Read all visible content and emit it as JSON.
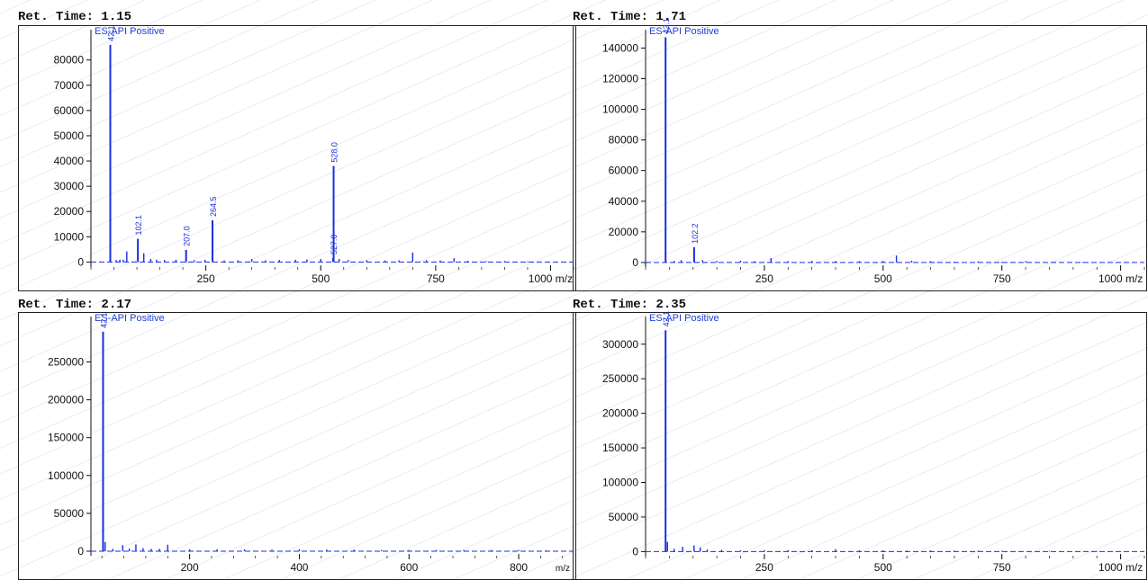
{
  "colors": {
    "spectrum": "#1a2fe0",
    "frame": "#222222",
    "axis": "#111111"
  },
  "panels": [
    {
      "ret_label": "Ret. Time: 1.15",
      "mode": "ES-API Positive"
    },
    {
      "ret_label": "Ret. Time: 1.71",
      "mode": "ES-API Positive"
    },
    {
      "ret_label": "Ret. Time: 2.17",
      "mode": "ES-API Positive"
    },
    {
      "ret_label": "Ret. Time: 2.35",
      "mode": "ES-API Positive"
    }
  ],
  "chart_data": [
    {
      "type": "bar",
      "title": "Ret. Time: 1.15",
      "subtitle": "ES-API Positive",
      "x_unit": "m/z",
      "xlim": [
        0,
        1050
      ],
      "ylim": [
        -2000,
        92000
      ],
      "x_ticks": [
        250,
        500,
        750,
        1000
      ],
      "x_tick_labels": [
        "250",
        "500",
        "750",
        "1000 m/z"
      ],
      "y_ticks": [
        0,
        10000,
        20000,
        30000,
        40000,
        50000,
        60000,
        70000,
        80000
      ],
      "peaks": [
        {
          "mz": 42.1,
          "intensity": 86000,
          "label": "42.1"
        },
        {
          "mz": 55,
          "intensity": 800
        },
        {
          "mz": 63,
          "intensity": 900
        },
        {
          "mz": 70,
          "intensity": 900
        },
        {
          "mz": 78,
          "intensity": 4200
        },
        {
          "mz": 102.1,
          "intensity": 9200,
          "label": "102.1"
        },
        {
          "mz": 115,
          "intensity": 3500
        },
        {
          "mz": 130,
          "intensity": 1200
        },
        {
          "mz": 143,
          "intensity": 900
        },
        {
          "mz": 160,
          "intensity": 800
        },
        {
          "mz": 185,
          "intensity": 900
        },
        {
          "mz": 207.0,
          "intensity": 4800,
          "label": "207.0"
        },
        {
          "mz": 225,
          "intensity": 700
        },
        {
          "mz": 248,
          "intensity": 900
        },
        {
          "mz": 264.5,
          "intensity": 16500,
          "label": "264.5"
        },
        {
          "mz": 290,
          "intensity": 600
        },
        {
          "mz": 320,
          "intensity": 700
        },
        {
          "mz": 350,
          "intensity": 1200
        },
        {
          "mz": 380,
          "intensity": 700
        },
        {
          "mz": 410,
          "intensity": 800
        },
        {
          "mz": 445,
          "intensity": 900
        },
        {
          "mz": 470,
          "intensity": 1000
        },
        {
          "mz": 500,
          "intensity": 1200
        },
        {
          "mz": 527.0,
          "intensity": 1500,
          "label": "527.0"
        },
        {
          "mz": 528.0,
          "intensity": 38000,
          "label": "528.0"
        },
        {
          "mz": 540,
          "intensity": 1200
        },
        {
          "mz": 560,
          "intensity": 800
        },
        {
          "mz": 600,
          "intensity": 700
        },
        {
          "mz": 640,
          "intensity": 600
        },
        {
          "mz": 670,
          "intensity": 700
        },
        {
          "mz": 700,
          "intensity": 3800
        },
        {
          "mz": 730,
          "intensity": 700
        },
        {
          "mz": 760,
          "intensity": 600
        },
        {
          "mz": 790,
          "intensity": 1500
        },
        {
          "mz": 820,
          "intensity": 500
        },
        {
          "mz": 860,
          "intensity": 400
        },
        {
          "mz": 900,
          "intensity": 400
        },
        {
          "mz": 950,
          "intensity": 300
        }
      ]
    },
    {
      "type": "bar",
      "title": "Ret. Time: 1.71",
      "subtitle": "ES-API Positive",
      "x_unit": "m/z",
      "xlim": [
        0,
        1050
      ],
      "ylim": [
        -3000,
        152000
      ],
      "x_ticks": [
        250,
        500,
        750,
        1000
      ],
      "x_tick_labels": [
        "250",
        "500",
        "750",
        "1000 m/z"
      ],
      "y_ticks": [
        0,
        20000,
        40000,
        60000,
        80000,
        100000,
        120000,
        140000
      ],
      "peaks": [
        {
          "mz": 42.1,
          "intensity": 147000,
          "label": "42.1"
        },
        {
          "mz": 60,
          "intensity": 1000
        },
        {
          "mz": 75,
          "intensity": 1500
        },
        {
          "mz": 102.2,
          "intensity": 10000,
          "label": "102.2"
        },
        {
          "mz": 120,
          "intensity": 1500
        },
        {
          "mz": 150,
          "intensity": 1000
        },
        {
          "mz": 200,
          "intensity": 1200
        },
        {
          "mz": 230,
          "intensity": 900
        },
        {
          "mz": 264,
          "intensity": 2800
        },
        {
          "mz": 300,
          "intensity": 900
        },
        {
          "mz": 350,
          "intensity": 1000
        },
        {
          "mz": 400,
          "intensity": 900
        },
        {
          "mz": 450,
          "intensity": 900
        },
        {
          "mz": 500,
          "intensity": 900
        },
        {
          "mz": 528,
          "intensity": 4500
        },
        {
          "mz": 560,
          "intensity": 1200
        },
        {
          "mz": 600,
          "intensity": 800
        },
        {
          "mz": 650,
          "intensity": 600
        },
        {
          "mz": 700,
          "intensity": 700
        },
        {
          "mz": 750,
          "intensity": 500
        },
        {
          "mz": 800,
          "intensity": 900
        },
        {
          "mz": 860,
          "intensity": 400
        },
        {
          "mz": 920,
          "intensity": 400
        }
      ]
    },
    {
      "type": "bar",
      "title": "Ret. Time: 2.17",
      "subtitle": "ES-API Positive",
      "x_unit": "m/z",
      "xlim": [
        20,
        900
      ],
      "ylim": [
        -6000,
        310000
      ],
      "x_ticks": [
        200,
        400,
        600,
        800
      ],
      "x_tick_labels": [
        "200",
        "400",
        "600",
        "800"
      ],
      "x_unit_label": "m/z",
      "y_ticks": [
        0,
        50000,
        100000,
        150000,
        200000,
        250000
      ],
      "peaks": [
        {
          "mz": 42.1,
          "intensity": 290000,
          "label": "42.1"
        },
        {
          "mz": 46,
          "intensity": 12000
        },
        {
          "mz": 60,
          "intensity": 3000
        },
        {
          "mz": 78,
          "intensity": 8000
        },
        {
          "mz": 90,
          "intensity": 3500
        },
        {
          "mz": 102,
          "intensity": 9000
        },
        {
          "mz": 115,
          "intensity": 4000
        },
        {
          "mz": 130,
          "intensity": 3000
        },
        {
          "mz": 145,
          "intensity": 3000
        },
        {
          "mz": 160,
          "intensity": 8500
        },
        {
          "mz": 200,
          "intensity": 2500
        },
        {
          "mz": 250,
          "intensity": 2500
        },
        {
          "mz": 300,
          "intensity": 2500
        },
        {
          "mz": 350,
          "intensity": 2000
        },
        {
          "mz": 400,
          "intensity": 2500
        },
        {
          "mz": 450,
          "intensity": 2000
        },
        {
          "mz": 500,
          "intensity": 2000
        },
        {
          "mz": 550,
          "intensity": 1500
        },
        {
          "mz": 600,
          "intensity": 1500
        },
        {
          "mz": 650,
          "intensity": 1500
        },
        {
          "mz": 700,
          "intensity": 1500
        },
        {
          "mz": 750,
          "intensity": 1500
        },
        {
          "mz": 800,
          "intensity": 1500
        },
        {
          "mz": 850,
          "intensity": 1000
        }
      ]
    },
    {
      "type": "bar",
      "title": "Ret. Time: 2.35",
      "subtitle": "ES-API Positive",
      "x_unit": "m/z",
      "xlim": [
        0,
        1050
      ],
      "ylim": [
        -6000,
        340000
      ],
      "x_ticks": [
        250,
        500,
        750,
        1000
      ],
      "x_tick_labels": [
        "250",
        "500",
        "750",
        "1000 m/z"
      ],
      "y_ticks": [
        0,
        50000,
        100000,
        150000,
        200000,
        250000,
        300000
      ],
      "peaks": [
        {
          "mz": 42.1,
          "intensity": 320000,
          "label": "42.1"
        },
        {
          "mz": 46,
          "intensity": 14000
        },
        {
          "mz": 60,
          "intensity": 4000
        },
        {
          "mz": 78,
          "intensity": 7000
        },
        {
          "mz": 102,
          "intensity": 9000
        },
        {
          "mz": 115,
          "intensity": 6000
        },
        {
          "mz": 130,
          "intensity": 3000
        },
        {
          "mz": 160,
          "intensity": 2500
        },
        {
          "mz": 200,
          "intensity": 2000
        },
        {
          "mz": 250,
          "intensity": 2000
        },
        {
          "mz": 300,
          "intensity": 2000
        },
        {
          "mz": 350,
          "intensity": 2000
        },
        {
          "mz": 400,
          "intensity": 3500
        },
        {
          "mz": 450,
          "intensity": 2000
        },
        {
          "mz": 500,
          "intensity": 1800
        },
        {
          "mz": 550,
          "intensity": 1500
        },
        {
          "mz": 600,
          "intensity": 1500
        },
        {
          "mz": 650,
          "intensity": 1500
        },
        {
          "mz": 700,
          "intensity": 1200
        },
        {
          "mz": 750,
          "intensity": 1200
        },
        {
          "mz": 850,
          "intensity": 1000
        },
        {
          "mz": 950,
          "intensity": 800
        }
      ]
    }
  ]
}
